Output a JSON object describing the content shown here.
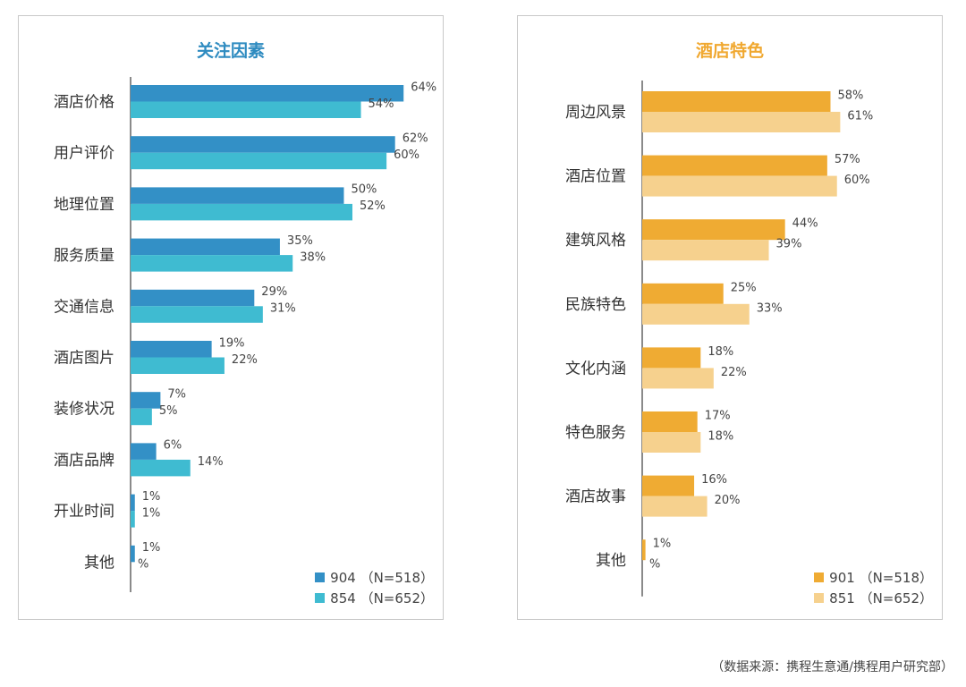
{
  "chart_data": [
    {
      "type": "bar",
      "orientation": "horizontal",
      "title": "关注因素",
      "title_color": "#2E8BC0",
      "categories": [
        "酒店价格",
        "用户评价",
        "地理位置",
        "服务质量",
        "交通信息",
        "酒店图片",
        "装修状况",
        "酒店品牌",
        "开业时间",
        "其他"
      ],
      "series": [
        {
          "name": "904 （N=518）",
          "color": "#3390C6",
          "values": [
            64,
            62,
            50,
            35,
            29,
            19,
            7,
            6,
            1,
            1
          ],
          "labels": [
            "64%",
            "62%",
            "50%",
            "35%",
            "29%",
            "19%",
            "7%",
            "6%",
            "1%",
            "1%"
          ]
        },
        {
          "name": "854 （N=652）",
          "color": "#3FBBD1",
          "values": [
            54,
            60,
            52,
            38,
            31,
            22,
            5,
            14,
            1,
            0
          ],
          "labels": [
            "54%",
            "60%",
            "52%",
            "38%",
            "31%",
            "22%",
            "5%",
            "14%",
            "1%",
            "%"
          ]
        }
      ],
      "xlim": [
        0,
        65
      ],
      "grid": false,
      "legend_position": "bottom-right"
    },
    {
      "type": "bar",
      "orientation": "horizontal",
      "title": "酒店特色",
      "title_color": "#F0A830",
      "categories": [
        "周边风景",
        "酒店位置",
        "建筑风格",
        "民族特色",
        "文化内涵",
        "特色服务",
        "酒店故事",
        "其他"
      ],
      "series": [
        {
          "name": "901 （N=518）",
          "color": "#EFAB33",
          "values": [
            58,
            57,
            44,
            25,
            18,
            17,
            16,
            1
          ],
          "labels": [
            "58%",
            "57%",
            "44%",
            "25%",
            "18%",
            "17%",
            "16%",
            "1%"
          ]
        },
        {
          "name": "851 （N=652）",
          "color": "#F6D18E",
          "values": [
            61,
            60,
            39,
            33,
            22,
            18,
            20,
            0
          ],
          "labels": [
            "61%",
            "60%",
            "39%",
            "33%",
            "22%",
            "18%",
            "20%",
            "%"
          ]
        }
      ],
      "xlim": [
        0,
        62
      ],
      "grid": false,
      "legend_position": "bottom-right"
    }
  ],
  "source_text": "（数据来源：携程生意通/携程用户研究部）"
}
